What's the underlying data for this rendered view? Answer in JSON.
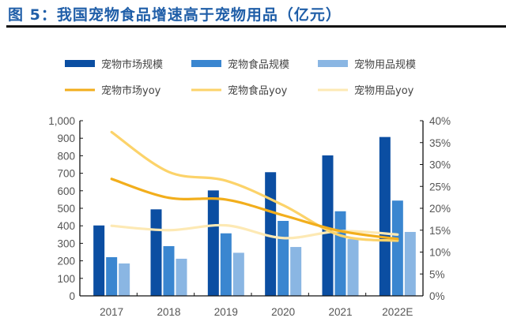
{
  "title": "图 5：我国宠物食品增速高于宠物用品（亿元）",
  "chart_data": {
    "type": "bar+line",
    "title": "图 5：我国宠物食品增速高于宠物用品（亿元）",
    "categories": [
      "2017",
      "2018",
      "2019",
      "2020",
      "2021",
      "2022E"
    ],
    "bar_series": [
      {
        "name": "宠物市场规模",
        "color": "#0b4ea2",
        "values": [
          402,
          494,
          602,
          706,
          802,
          907
        ]
      },
      {
        "name": "宠物食品规模",
        "color": "#3a86d0",
        "values": [
          221,
          284,
          357,
          428,
          483,
          544
        ]
      },
      {
        "name": "宠物用品规模",
        "color": "#8ab6e3",
        "values": [
          185,
          212,
          246,
          279,
          324,
          365
        ]
      }
    ],
    "line_series": [
      {
        "name": "宠物市场yoy",
        "color": "#f2ae1c",
        "values": [
          26.7,
          22.4,
          22.0,
          18.4,
          14.8,
          13.0
        ]
      },
      {
        "name": "宠物食品yoy",
        "color": "#fcd36a",
        "values": [
          37.4,
          28.3,
          26.3,
          20.7,
          13.8,
          12.6
        ]
      },
      {
        "name": "宠物用品yoy",
        "color": "#fde9b4",
        "values": [
          16.0,
          15.0,
          16.1,
          13.2,
          14.8,
          14.0
        ]
      }
    ],
    "y_left": {
      "lim": [
        0,
        1000
      ],
      "ticks": [
        "0",
        "100",
        "200",
        "300",
        "400",
        "500",
        "600",
        "700",
        "800",
        "900",
        "1,000"
      ]
    },
    "y_right": {
      "lim": [
        0,
        40
      ],
      "unit": "%",
      "ticks": [
        "0%",
        "5%",
        "10%",
        "15%",
        "20%",
        "25%",
        "30%",
        "35%",
        "40%"
      ]
    },
    "legend_position": "top",
    "grid": false
  }
}
